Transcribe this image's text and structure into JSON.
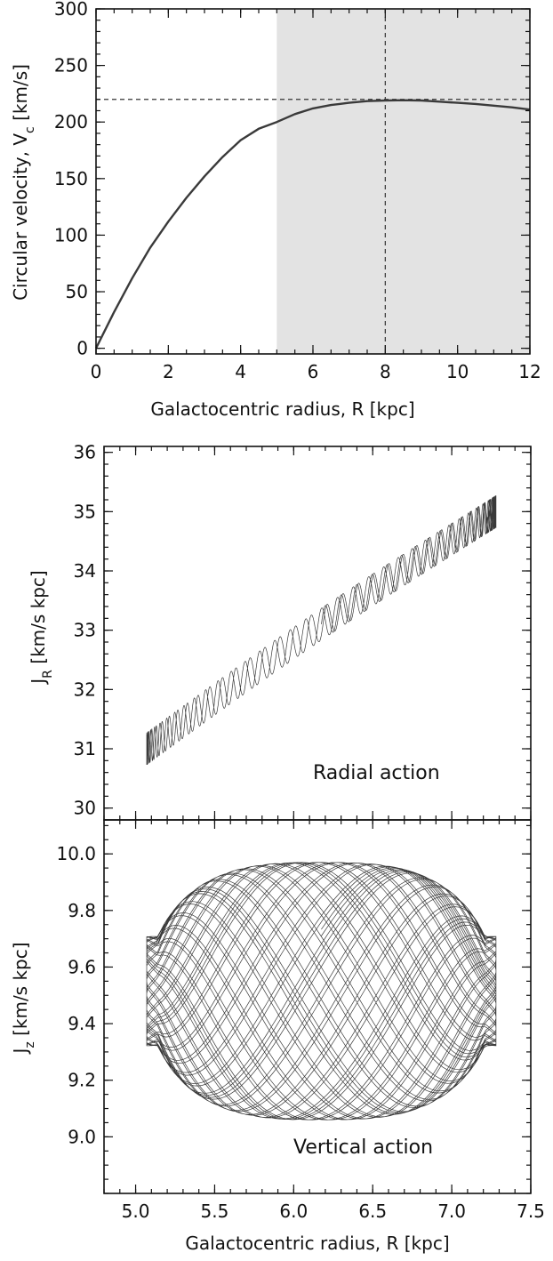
{
  "chart_data": [
    {
      "type": "line",
      "xlabel": "Galactocentric radius, R [kpc]",
      "ylabel": {
        "main": "Circular velocity, V",
        "sub": "c",
        "unit": " [km/s]"
      },
      "xlim": [
        0,
        12
      ],
      "ylim": [
        -5,
        300
      ],
      "xticks": [
        0,
        2,
        4,
        6,
        8,
        10,
        12
      ],
      "xtick_labels": [
        "0",
        "2",
        "4",
        "6",
        "8",
        "10",
        "12"
      ],
      "yticks": [
        0,
        50,
        100,
        150,
        200,
        250,
        300
      ],
      "ytick_labels": [
        "0",
        "50",
        "100",
        "150",
        "200",
        "250",
        "300"
      ],
      "shaded_region": {
        "x": [
          5,
          12
        ],
        "color": "#e3e3e3"
      },
      "reference_lines": {
        "horizontal_y": 220,
        "vertical_x": 8
      },
      "series": [
        {
          "x": [
            0,
            0.5,
            1,
            1.5,
            2,
            2.5,
            3,
            3.5,
            4,
            4.5,
            5,
            5.5,
            6,
            6.5,
            7,
            7.5,
            8,
            8.5,
            9,
            9.5,
            10,
            10.5,
            11,
            11.5,
            12
          ],
          "values": [
            0,
            32,
            62,
            89,
            112,
            133,
            152,
            169,
            184,
            194,
            200,
            207,
            212,
            215,
            217,
            218.5,
            219,
            219.3,
            219,
            218,
            217,
            216,
            214.5,
            213,
            211
          ],
          "color": "#3a3a3a"
        }
      ]
    },
    {
      "type": "line",
      "ylabel": {
        "main": "J",
        "sub": "R",
        "unit": " [km/s kpc]"
      },
      "xlim": [
        4.8,
        7.5
      ],
      "ylim": [
        29.8,
        36.1
      ],
      "yticks": [
        30,
        31,
        32,
        33,
        34,
        35,
        36
      ],
      "ytick_labels": [
        "30",
        "31",
        "32",
        "33",
        "34",
        "35",
        "36"
      ],
      "annotation": "Radial action",
      "orbit": {
        "r_min": 5.07,
        "r_max": 7.28,
        "j_center_at_rmin": 31.0,
        "j_center_at_rmax": 35.0,
        "half_width": 0.27,
        "turns": 90
      },
      "series_color": "#3a3a3a"
    },
    {
      "type": "line",
      "xlabel": "Galactocentric radius, R [kpc]",
      "ylabel": {
        "main": "J",
        "sub": "z",
        "unit": " [km/s kpc]"
      },
      "xlim": [
        4.8,
        7.5
      ],
      "ylim": [
        8.8,
        10.12
      ],
      "xticks": [
        5.0,
        5.5,
        6.0,
        6.5,
        7.0,
        7.5
      ],
      "xtick_labels": [
        "5.0",
        "5.5",
        "6.0",
        "6.5",
        "7.0",
        "7.5"
      ],
      "yticks": [
        9.0,
        9.2,
        9.4,
        9.6,
        9.8,
        10.0
      ],
      "ytick_labels": [
        "9.0",
        "9.2",
        "9.4",
        "9.6",
        "9.8",
        "10.0"
      ],
      "annotation": "Vertical action",
      "orbit": {
        "r_min": 5.07,
        "r_max": 7.28,
        "j_min": 9.09,
        "j_max": 10.0,
        "turns": 55
      },
      "series_color": "#3a3a3a"
    }
  ]
}
